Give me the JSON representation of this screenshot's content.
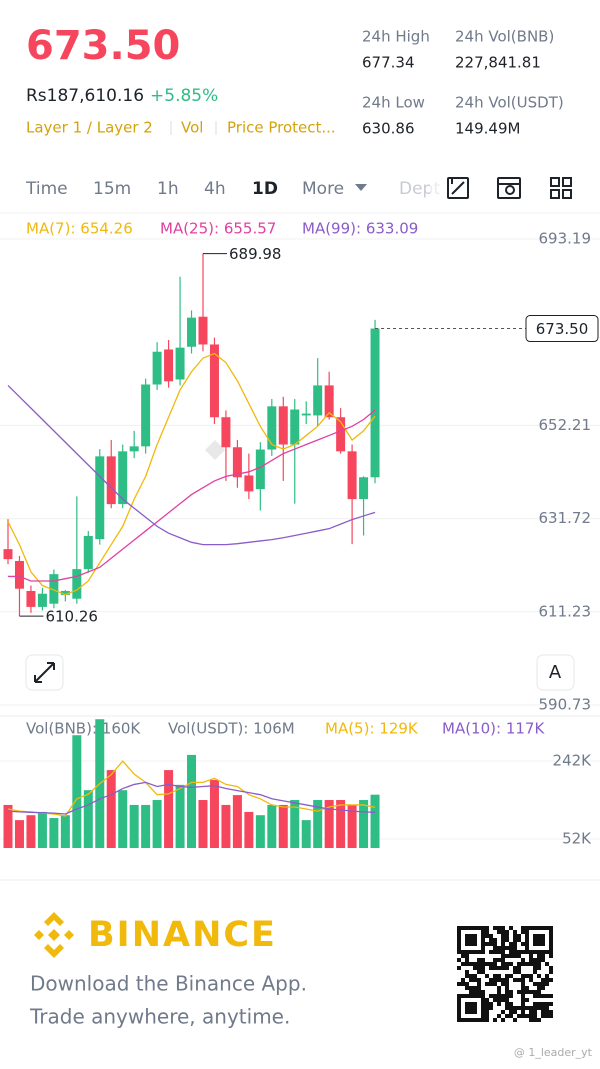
{
  "header": {
    "price": "673.50",
    "fiat": "Rs187,610.16",
    "change": "+5.85%",
    "tags": [
      "Layer 1 / Layer 2",
      "Vol",
      "Price Protect..."
    ],
    "stats": [
      {
        "label": "24h High",
        "value": "677.34"
      },
      {
        "label": "24h Vol(BNB)",
        "value": "227,841.81"
      },
      {
        "label": "24h Low",
        "value": "630.86"
      },
      {
        "label": "24h Vol(USDT)",
        "value": "149.49M"
      }
    ]
  },
  "tabs": [
    "Time",
    "15m",
    "1h",
    "4h",
    "1D",
    "More",
    "Dept"
  ],
  "ui": {
    "auto_button": "A"
  },
  "chart_data": [
    {
      "type": "candlestick",
      "up_color": "#2ebd85",
      "down_color": "#f6465d",
      "open": [
        625.0,
        622.4,
        615.8,
        612.3,
        613.0,
        614.9,
        614.1,
        620.6,
        627.2,
        645.4,
        634.9,
        646.5,
        647.6,
        661.2,
        668.9,
        662.3,
        669.5,
        676.1,
        670.0,
        654.0,
        647.4,
        641.2,
        638.2,
        646.9,
        656.4,
        648.0,
        654.4,
        654.4,
        661.0,
        654.0,
        646.5,
        636.0,
        640.8
      ],
      "high": [
        631.6,
        623.5,
        617.0,
        616.5,
        620.5,
        616.0,
        636.6,
        629.0,
        647.0,
        649.0,
        648.0,
        651.0,
        662.5,
        670.5,
        671.0,
        684.9,
        677.5,
        689.98,
        671.5,
        655.5,
        649.0,
        646.0,
        648.5,
        658.0,
        658.5,
        658.0,
        657.5,
        667.0,
        664.0,
        656.0,
        648.0,
        641.0,
        675.4
      ],
      "low": [
        621.7,
        610.26,
        611.0,
        611.5,
        612.0,
        613.5,
        613.0,
        619.8,
        626.0,
        634.0,
        634.0,
        645.0,
        646.0,
        660.0,
        660.5,
        661.0,
        668.0,
        668.5,
        652.5,
        640.0,
        638.5,
        636.0,
        633.5,
        645.5,
        640.0,
        635.0,
        652.5,
        652.0,
        653.5,
        646.0,
        626.1,
        628.0,
        639.5
      ],
      "close": [
        622.8,
        616.3,
        612.3,
        615.2,
        619.5,
        615.8,
        620.6,
        627.9,
        645.4,
        634.9,
        646.5,
        647.6,
        661.2,
        668.4,
        661.9,
        669.3,
        675.9,
        670.0,
        654.0,
        647.4,
        640.8,
        637.7,
        646.9,
        656.4,
        648.0,
        655.7,
        654.8,
        661.0,
        654.0,
        646.5,
        636.0,
        640.8,
        673.5
      ],
      "series": [
        {
          "label": "MA(7): 654.26",
          "color": "#f0b90b",
          "values": [
            631,
            626,
            620,
            617,
            616,
            615,
            616,
            618,
            622,
            626,
            630,
            636,
            641,
            648,
            654,
            660,
            664,
            667,
            668,
            666,
            662,
            657,
            652,
            648,
            647,
            648,
            650,
            652,
            655,
            653,
            649,
            651,
            654.26
          ]
        },
        {
          "label": "MA(25): 655.57",
          "color": "#e040a0",
          "values": [
            619,
            619,
            618,
            618,
            618,
            618.5,
            619,
            620,
            621,
            623,
            625,
            627,
            629,
            631,
            633,
            635,
            637,
            638.5,
            640,
            641,
            641.5,
            642,
            643,
            644.5,
            646,
            647,
            648,
            649,
            650,
            651,
            652,
            653.5,
            655.57
          ]
        },
        {
          "label": "MA(99): 633.09",
          "color": "#8a5cc9",
          "values": [
            661,
            658.5,
            656,
            653.5,
            651,
            648.5,
            646,
            643.5,
            641,
            638.5,
            636,
            634,
            632,
            630,
            628.5,
            627.5,
            626.5,
            626,
            626,
            626,
            626.2,
            626.5,
            626.8,
            627.1,
            627.5,
            628,
            628.5,
            629,
            629.5,
            630.5,
            631.5,
            632.3,
            633.09
          ]
        }
      ],
      "ylim": [
        590.73,
        693.19
      ],
      "yticks": [
        693.19,
        652.21,
        631.72,
        611.23,
        590.73
      ],
      "last_price": {
        "value": 673.5,
        "label": "673.50"
      },
      "annotations": [
        689.98,
        610.26
      ],
      "grid": true
    },
    {
      "type": "bar",
      "values": [
        135000,
        98000,
        110000,
        118000,
        103000,
        110000,
        305000,
        171000,
        344000,
        220000,
        171000,
        135000,
        135000,
        147000,
        220000,
        184000,
        257000,
        147000,
        196000,
        135000,
        159000,
        118000,
        110000,
        135000,
        135000,
        147000,
        98000,
        147000,
        147000,
        147000,
        135000,
        147000,
        160000
      ],
      "legend": [
        {
          "label": "Vol(BNB): 160K",
          "color": "#707a8a"
        },
        {
          "label": "Vol(USDT): 106M",
          "color": "#707a8a"
        }
      ],
      "series": [
        {
          "label": "MA(5): 129K",
          "color": "#f0b90b",
          "values": [
            125000,
            120000,
            118000,
            115000,
            113000,
            108000,
            150000,
            161000,
            187000,
            209000,
            242000,
            210000,
            190000,
            160000,
            162000,
            175000,
            190000,
            190000,
            200000,
            185000,
            180000,
            160000,
            150000,
            135000,
            130000,
            130000,
            125000,
            120000,
            130000,
            135000,
            135000,
            135000,
            129000
          ]
        },
        {
          "label": "MA(10): 117K",
          "color": "#8a5cc9",
          "values": [
            120000,
            118000,
            117000,
            116000,
            115000,
            113000,
            125000,
            135000,
            150000,
            160000,
            175000,
            185000,
            190000,
            180000,
            185000,
            180000,
            178000,
            180000,
            182000,
            175000,
            170000,
            165000,
            160000,
            150000,
            145000,
            140000,
            135000,
            130000,
            125000,
            123000,
            120000,
            118000,
            117000
          ]
        }
      ],
      "ylim": [
        30000,
        347000
      ],
      "yticks": [
        {
          "value": 242000,
          "label": "242K"
        },
        {
          "value": 52000,
          "label": "52K"
        }
      ]
    }
  ],
  "footer": {
    "brand": "BINANCE",
    "lines": [
      "Download the Binance App.",
      "Trade anywhere, anytime."
    ]
  },
  "watermark": "@ 1_leader_yt"
}
